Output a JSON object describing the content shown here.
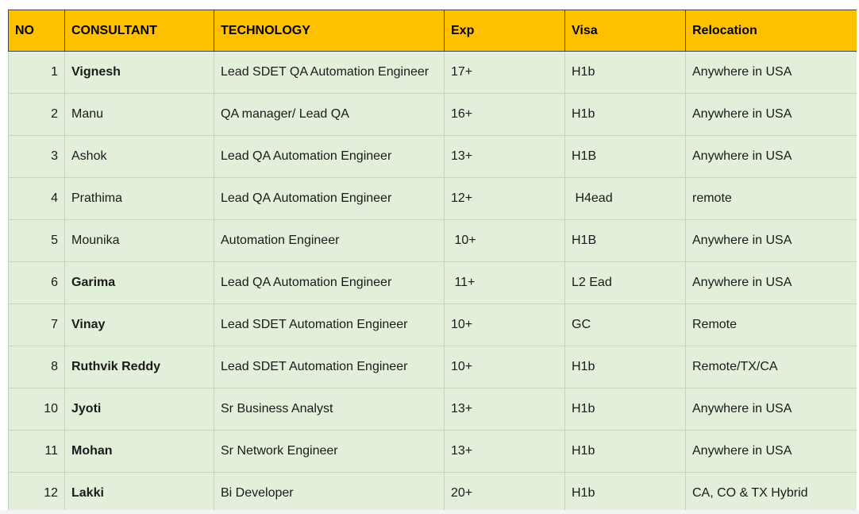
{
  "columns": {
    "no": "NO",
    "consultant": "CONSULTANT",
    "technology": "TECHNOLOGY",
    "exp": "Exp",
    "visa": "Visa",
    "relocation": "Relocation"
  },
  "rows": [
    {
      "no": "1",
      "consultant": "Vignesh",
      "bold": true,
      "technology": "Lead SDET QA Automation Engineer",
      "exp": "17+",
      "visa": "H1b",
      "relocation": "Anywhere in USA"
    },
    {
      "no": "2",
      "consultant": "Manu",
      "bold": false,
      "technology": "QA manager/ Lead QA",
      "exp": "16+",
      "visa": "H1b",
      "relocation": "Anywhere in USA"
    },
    {
      "no": "3",
      "consultant": "Ashok",
      "bold": false,
      "technology": "Lead QA Automation Engineer",
      "exp": "13+",
      "visa": "H1B",
      "relocation": "Anywhere in USA"
    },
    {
      "no": "4",
      "consultant": "Prathima",
      "bold": false,
      "technology": "Lead QA Automation Engineer",
      "exp": "12+",
      "visa": " H4ead",
      "relocation": "remote"
    },
    {
      "no": "5",
      "consultant": "Mounika",
      "bold": false,
      "technology": "Automation Engineer",
      "exp": " 10+",
      "visa": "H1B",
      "relocation": "Anywhere in USA"
    },
    {
      "no": "6",
      "consultant": "Garima",
      "bold": true,
      "technology": "Lead QA Automation Engineer",
      "exp": " 11+",
      "visa": "L2 Ead",
      "relocation": "Anywhere in USA"
    },
    {
      "no": "7",
      "consultant": "Vinay",
      "bold": true,
      "technology": "Lead SDET Automation Engineer",
      "exp": "10+",
      "visa": "GC",
      "relocation": "Remote"
    },
    {
      "no": "8",
      "consultant": "Ruthvik Reddy",
      "bold": true,
      "technology": "Lead SDET Automation Engineer",
      "exp": "10+",
      "visa": "H1b",
      "relocation": "Remote/TX/CA"
    },
    {
      "no": "10",
      "consultant": "Jyoti",
      "bold": true,
      "technology": "Sr Business Analyst",
      "exp": "13+",
      "visa": "H1b",
      "relocation": "Anywhere in USA"
    },
    {
      "no": "11",
      "consultant": "Mohan",
      "bold": true,
      "technology": "Sr Network Engineer",
      "exp": "13+",
      "visa": "H1b",
      "relocation": "Anywhere in USA"
    },
    {
      "no": "12",
      "consultant": "Lakki",
      "bold": true,
      "technology": "Bi Developer",
      "exp": "20+",
      "visa": "H1b",
      "relocation": "CA, CO & TX Hybrid"
    }
  ],
  "colors": {
    "header_bg": "#ffc000",
    "row_bg": "#e2efda"
  }
}
